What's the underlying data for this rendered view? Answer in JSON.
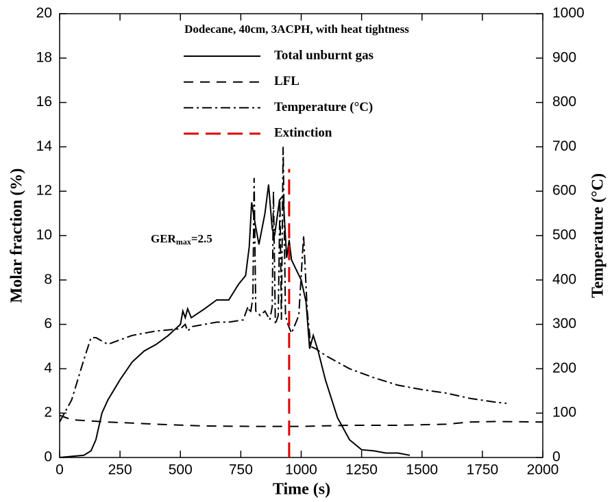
{
  "chart_data": {
    "type": "line",
    "legend_title": "Dodecane, 40cm, 3ACPH, with heat tightness",
    "xlabel": "Time (s)",
    "ylabel": "Molar fraction (%)",
    "y2label": "Temperature (°C)",
    "annotation": {
      "main": "GER",
      "sub": "max",
      "rest": "=2.5"
    },
    "xlim": [
      0,
      2000
    ],
    "xticks": [
      0,
      250,
      500,
      750,
      1000,
      1250,
      1500,
      1750,
      2000
    ],
    "ylim": [
      0,
      20
    ],
    "yticks": [
      0,
      2,
      4,
      6,
      8,
      10,
      12,
      14,
      16,
      18,
      20
    ],
    "y2lim": [
      0,
      1000
    ],
    "y2ticks": [
      0,
      100,
      200,
      300,
      400,
      500,
      600,
      700,
      800,
      900,
      1000
    ],
    "series": [
      {
        "name": "Total unburnt gas",
        "color": "#000000",
        "dash": "solid",
        "x": [
          0,
          50,
          100,
          130,
          150,
          175,
          200,
          250,
          300,
          350,
          400,
          450,
          500,
          510,
          520,
          530,
          545,
          600,
          650,
          700,
          740,
          770,
          785,
          795,
          810,
          825,
          850,
          865,
          880,
          890,
          910,
          925,
          940,
          950,
          960,
          1000,
          1020,
          1035,
          1050,
          1070,
          1100,
          1150,
          1200,
          1250,
          1300,
          1350,
          1400,
          1450
        ],
        "values": [
          0,
          0.05,
          0.1,
          0.3,
          0.8,
          2,
          2.6,
          3.5,
          4.3,
          4.8,
          5.1,
          5.5,
          6.0,
          6.6,
          6.3,
          6.7,
          6.3,
          6.7,
          7.1,
          7.1,
          7.8,
          8.2,
          9.5,
          11.5,
          10.5,
          9.6,
          11.0,
          12.3,
          10.3,
          10.0,
          11.6,
          11.8,
          9.0,
          9.8,
          8.9,
          8.0,
          7.0,
          4.9,
          5.5,
          4.8,
          3.5,
          1.8,
          0.8,
          0.35,
          0.3,
          0.2,
          0.2,
          0.1
        ]
      },
      {
        "name": "LFL",
        "color": "#000000",
        "dash": "dashed",
        "x": [
          0,
          50,
          200,
          400,
          600,
          800,
          1000,
          1200,
          1400,
          1600,
          1700,
          1800,
          2000
        ],
        "values": [
          1.9,
          1.7,
          1.6,
          1.5,
          1.42,
          1.4,
          1.4,
          1.45,
          1.45,
          1.5,
          1.6,
          1.62,
          1.6
        ]
      },
      {
        "name": "Temperature (°C)",
        "color": "#000000",
        "dash": "dashdot",
        "axis": "y2",
        "x": [
          0,
          50,
          100,
          130,
          150,
          200,
          250,
          300,
          400,
          500,
          520,
          530,
          550,
          600,
          650,
          700,
          760,
          780,
          790,
          800,
          805,
          812,
          830,
          850,
          870,
          880,
          885,
          893,
          905,
          912,
          918,
          925,
          935,
          945,
          960,
          990,
          1010,
          1025,
          1040,
          1060,
          1100,
          1200,
          1300,
          1400,
          1500,
          1600,
          1700,
          1800,
          1850
        ],
        "values": [
          80,
          130,
          220,
          270,
          270,
          255,
          265,
          275,
          285,
          290,
          300,
          285,
          295,
          300,
          305,
          305,
          310,
          340,
          325,
          360,
          630,
          330,
          320,
          330,
          310,
          340,
          600,
          300,
          320,
          580,
          310,
          700,
          320,
          300,
          280,
          320,
          500,
          330,
          250,
          245,
          230,
          200,
          180,
          163,
          153,
          145,
          133,
          125,
          122
        ]
      },
      {
        "name": "Extinction",
        "color": "#e00000",
        "dash": "longdash",
        "x": [
          950,
          950
        ],
        "values": [
          0,
          13
        ]
      }
    ]
  }
}
